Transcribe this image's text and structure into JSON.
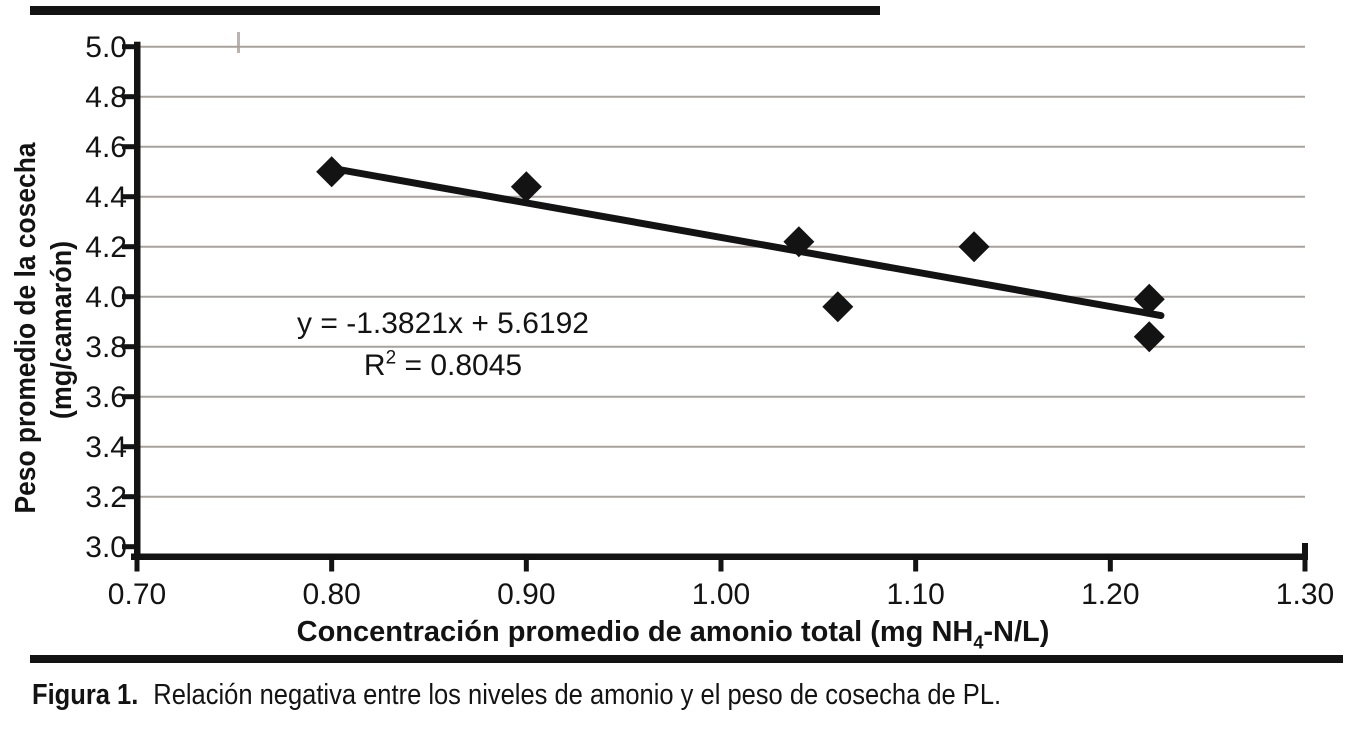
{
  "figure": {
    "caption": {
      "prefix": "Figura 1.",
      "text": "Relación negativa entre los niveles de amonio y el peso de cosecha de PL."
    }
  },
  "chart_data": {
    "type": "scatter",
    "title": "",
    "xlabel": "Concentración promedio de amonio total (mg NH₄-N/L)",
    "ylabel": "Peso promedio de la cosecha (mg/camarón)",
    "ylabel_lines": [
      "Peso promedio de la cosecha",
      "(mg/camarón)"
    ],
    "xlim": [
      0.7,
      1.3
    ],
    "ylim": [
      3.0,
      5.0
    ],
    "xticks": {
      "values": [
        0.7,
        0.8,
        0.9,
        1.0,
        1.1,
        1.2,
        1.3
      ],
      "labels": [
        "0.70",
        "0.80",
        "0.90",
        "1.00",
        "1.10",
        "1.20",
        "1.30"
      ]
    },
    "yticks": {
      "values": [
        3.0,
        3.2,
        3.4,
        3.6,
        3.8,
        4.0,
        4.2,
        4.4,
        4.6,
        4.8,
        5.0
      ],
      "labels": [
        "3.0",
        "3.2",
        "3.4",
        "3.6",
        "3.8",
        "4.0",
        "4.2",
        "4.4",
        "4.6",
        "4.8",
        "5.0"
      ]
    },
    "grid": "horizontal",
    "legend": "none",
    "marker": "diamond",
    "points": [
      [
        0.8,
        4.5
      ],
      [
        0.9,
        4.44
      ],
      [
        1.04,
        4.22
      ],
      [
        1.06,
        3.96
      ],
      [
        1.13,
        4.2
      ],
      [
        1.22,
        3.99
      ],
      [
        1.22,
        3.84
      ]
    ],
    "trendline": {
      "equation": "y = -1.3821x + 5.6192",
      "r_squared": "R² = 0.8045",
      "slope": -1.3821,
      "intercept": 5.6192,
      "x_start": 0.799,
      "x_end": 1.226
    },
    "colors": {
      "foreground": "#131313",
      "gridline": "#a9a29b",
      "background": "#ffffff"
    }
  }
}
